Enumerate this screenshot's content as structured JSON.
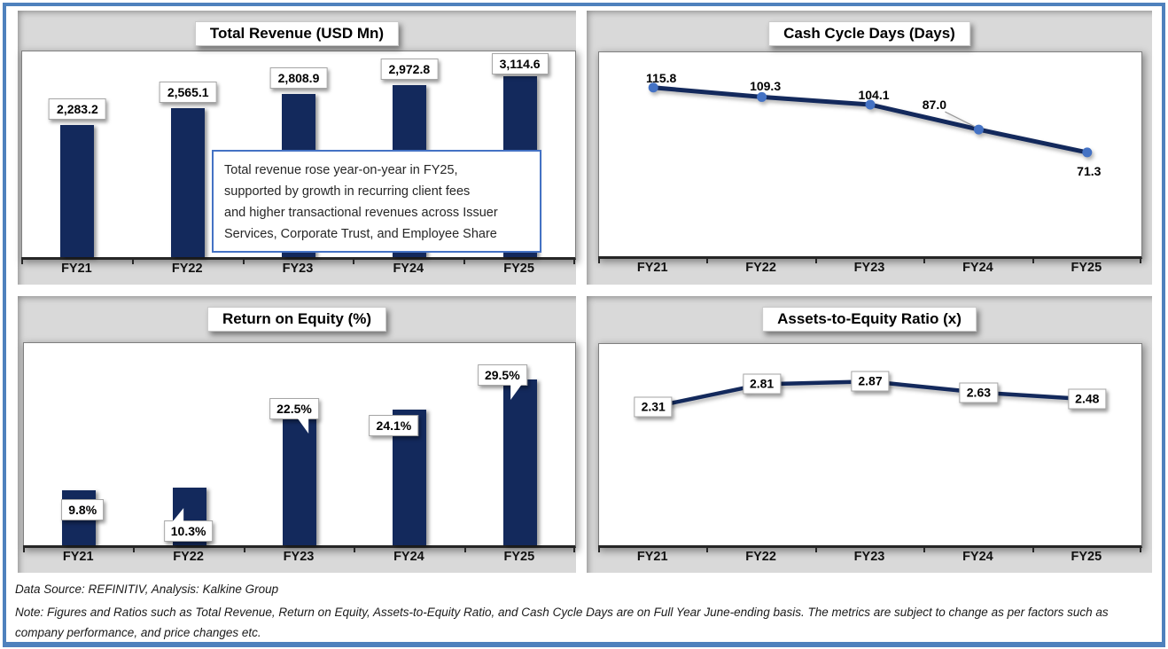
{
  "colors": {
    "frame_border": "#4E81BD",
    "panel_background": "#D9D9D9",
    "bar": "#13295C",
    "line": "#13295C",
    "marker": "#4472C4",
    "annotation_border": "#4472C4",
    "axis": "#262626",
    "leader_line": "#999999"
  },
  "chart_data": [
    {
      "id": "total-revenue",
      "type": "bar",
      "title": "Total Revenue (USD Mn)",
      "categories": [
        "FY21",
        "FY22",
        "FY23",
        "FY24",
        "FY25"
      ],
      "values": [
        2283.2,
        2565.1,
        2808.9,
        2972.8,
        3114.6
      ],
      "labels": [
        "2,283.2",
        "2,565.1",
        "2,808.9",
        "2,972.8",
        "3,114.6"
      ],
      "ylim": [
        0,
        3550
      ],
      "grid": false,
      "legend": "none",
      "annotation_lines": [
        "Total revenue rose year-on-year in FY25,",
        "supported by growth in recurring client fees",
        "and higher transactional revenues across Issuer",
        "Services, Corporate Trust, and Employee Share"
      ]
    },
    {
      "id": "cash-cycle-days",
      "type": "line",
      "title": "Cash Cycle Days (Days)",
      "categories": [
        "FY21",
        "FY22",
        "FY23",
        "FY24",
        "FY25"
      ],
      "values": [
        115.8,
        109.3,
        104.1,
        87.0,
        71.3
      ],
      "labels": [
        "115.8",
        "109.3",
        "104.1",
        "87.0",
        "71.3"
      ],
      "ylim": [
        0,
        140
      ],
      "grid": false,
      "legend": "none"
    },
    {
      "id": "return-on-equity",
      "type": "bar",
      "title": "Return on Equity (%)",
      "categories": [
        "FY21",
        "FY22",
        "FY23",
        "FY24",
        "FY25"
      ],
      "values": [
        9.8,
        10.3,
        22.5,
        24.1,
        29.5
      ],
      "labels": [
        "9.8%",
        "10.3%",
        "22.5%",
        "24.1%",
        "29.5%"
      ],
      "ylim": [
        0,
        36
      ],
      "grid": false,
      "legend": "none"
    },
    {
      "id": "assets-to-equity",
      "type": "line",
      "title": "Assets-to-Equity Ratio (x)",
      "categories": [
        "FY21",
        "FY22",
        "FY23",
        "FY24",
        "FY25"
      ],
      "values": [
        2.31,
        2.81,
        2.87,
        2.63,
        2.48
      ],
      "labels": [
        "2.31",
        "2.81",
        "2.87",
        "2.63",
        "2.48"
      ],
      "ylim": [
        -0.75,
        3.7
      ],
      "grid": false,
      "legend": "none"
    }
  ],
  "footer": {
    "source": "Data Source: REFINITIV, Analysis: Kalkine Group",
    "note": "Note: Figures and Ratios such as Total Revenue, Return on Equity, Assets-to-Equity Ratio, and Cash Cycle Days are on Full Year June-ending basis. The metrics are subject to change as per factors such as company performance, and price changes etc."
  }
}
